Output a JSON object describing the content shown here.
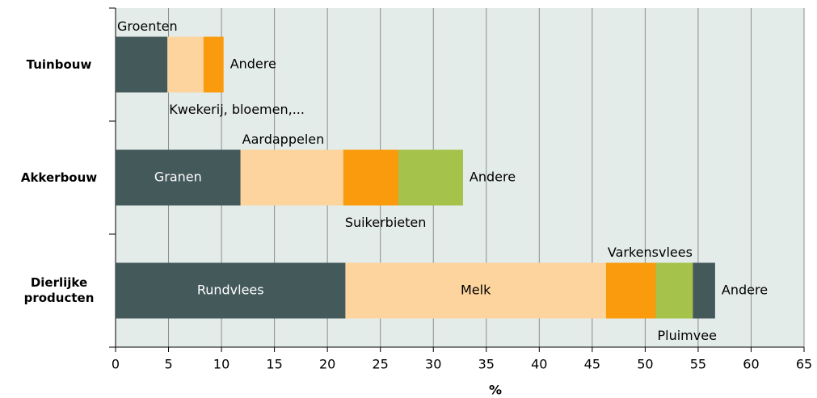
{
  "chart_data": {
    "type": "stacked-barh",
    "x_label": "%",
    "xlim": [
      0,
      65
    ],
    "xticks": [
      0,
      5,
      10,
      15,
      20,
      25,
      30,
      35,
      40,
      45,
      50,
      55,
      60,
      65
    ],
    "grid": true,
    "bars": [
      {
        "category": "Tuinbouw",
        "segments": [
          {
            "name": "Groenten",
            "value": 4.9,
            "color": "#44595a",
            "label": "above"
          },
          {
            "name": "Kwekerij, bloemen,...",
            "value": 3.4,
            "color": "#fdd49e",
            "label": "below"
          },
          {
            "name": "Andere",
            "value": 1.9,
            "color": "#f99b0c",
            "label": "right"
          }
        ]
      },
      {
        "category": "Akkerbouw",
        "segments": [
          {
            "name": "Granen",
            "value": 11.8,
            "color": "#44595a",
            "label": "inside"
          },
          {
            "name": "Aardappelen",
            "value": 9.7,
            "color": "#fdd49e",
            "label": "above"
          },
          {
            "name": "Suikerbieten",
            "value": 5.2,
            "color": "#f99b0c",
            "label": "below"
          },
          {
            "name": "Andere",
            "value": 6.1,
            "color": "#a5c24a",
            "label": "right"
          }
        ]
      },
      {
        "category": "Dierlijke producten",
        "segments": [
          {
            "name": "Rundvlees",
            "value": 21.7,
            "color": "#44595a",
            "label": "inside"
          },
          {
            "name": "Melk",
            "value": 24.6,
            "color": "#fdd49e",
            "label": "inside"
          },
          {
            "name": "Varkensvlees",
            "value": 4.7,
            "color": "#f99b0c",
            "label": "above"
          },
          {
            "name": "Pluimvee",
            "value": 3.5,
            "color": "#a5c24a",
            "label": "below"
          },
          {
            "name": "Andere",
            "value": 2.1,
            "color": "#44595a",
            "label": "right"
          }
        ]
      }
    ]
  }
}
